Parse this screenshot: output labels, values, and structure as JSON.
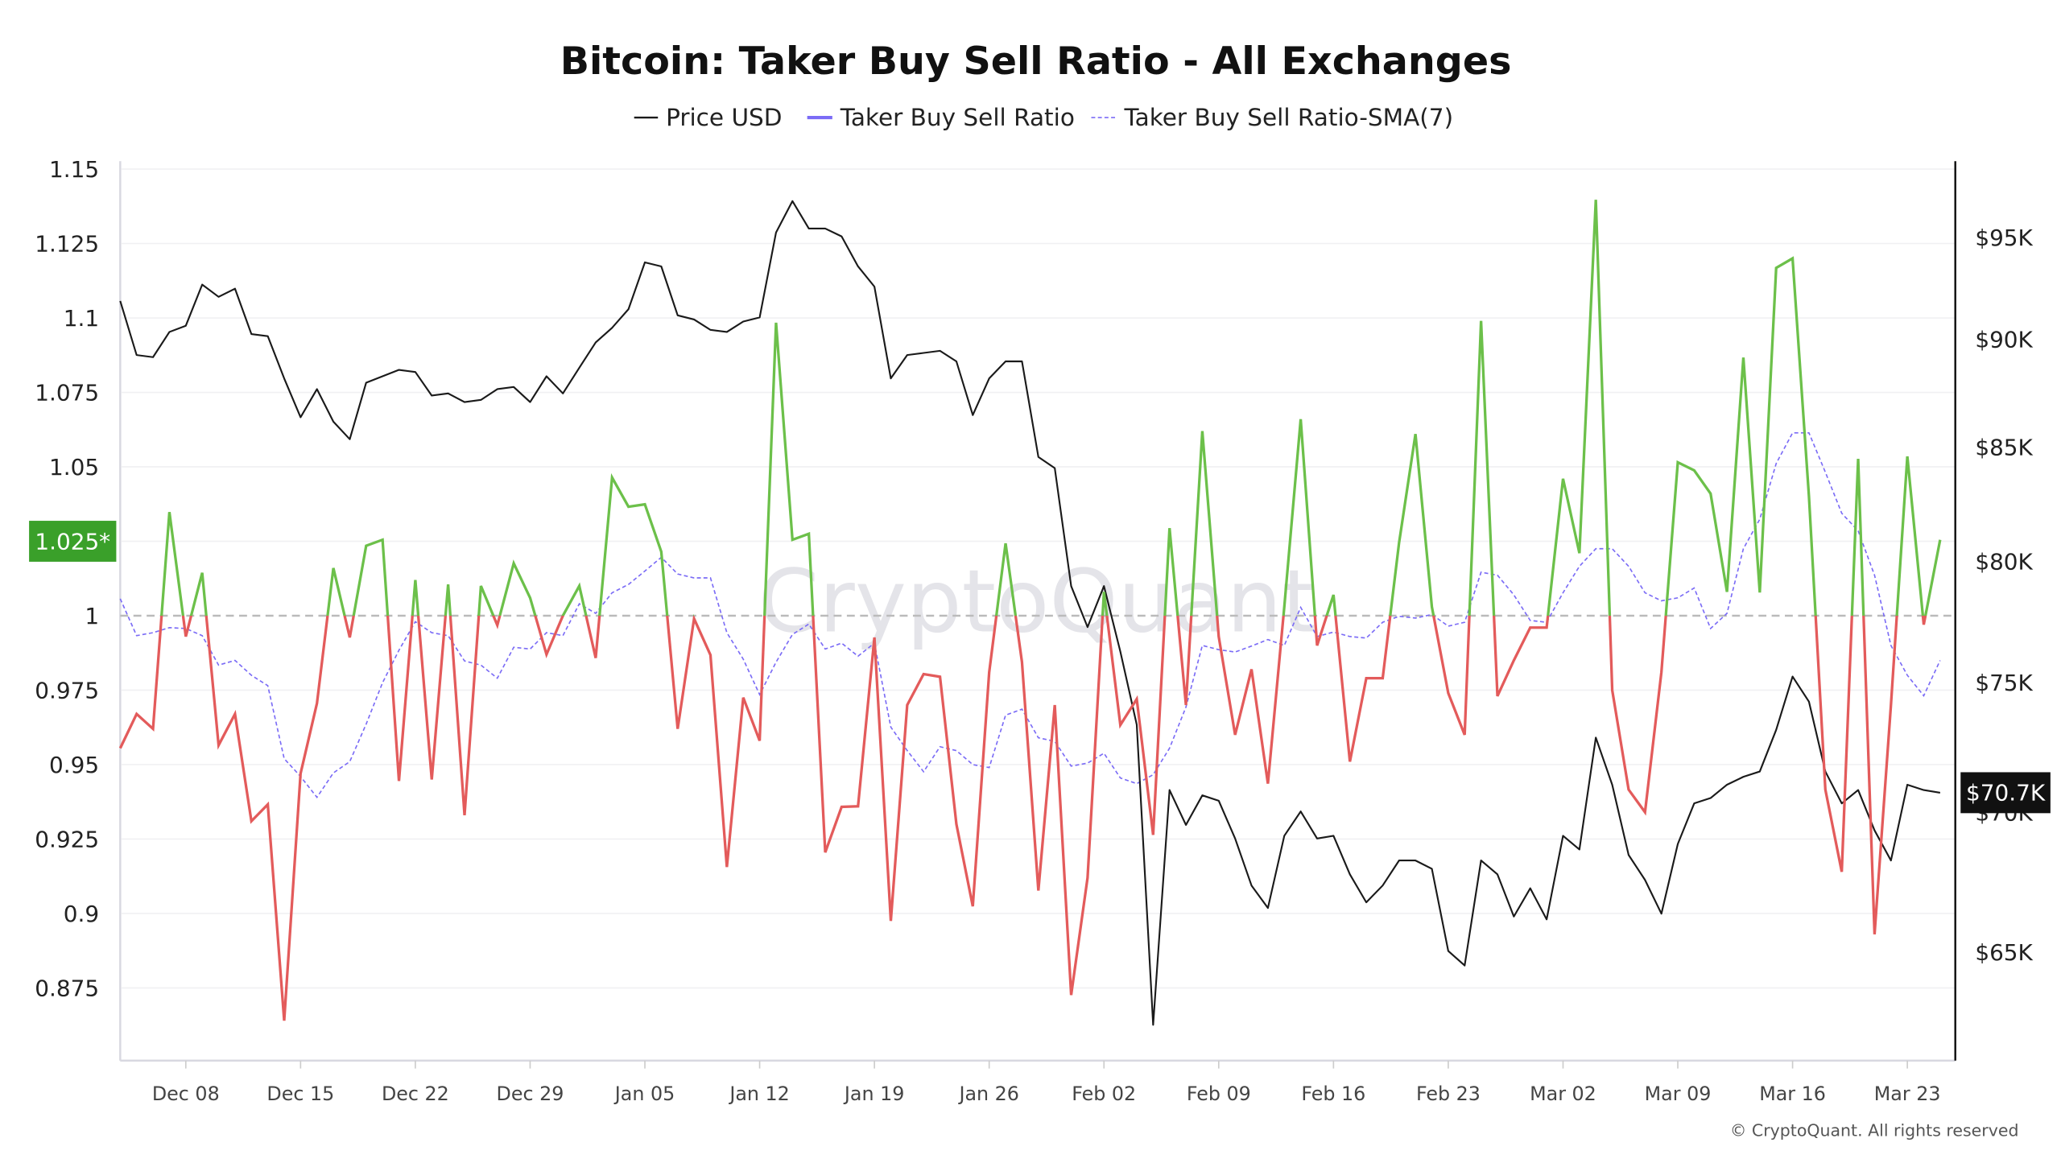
{
  "chart_data": {
    "type": "line",
    "title": "Bitcoin: Taker Buy Sell Ratio - All Exchanges",
    "legend": {
      "placement": "top-center",
      "items": [
        "Price USD",
        "Taker Buy Sell Ratio",
        "Taker Buy Sell Ratio-SMA(7)"
      ]
    },
    "x": [
      "Dec 04",
      "Dec 05",
      "Dec 06",
      "Dec 07",
      "Dec 08",
      "Dec 09",
      "Dec 10",
      "Dec 11",
      "Dec 12",
      "Dec 13",
      "Dec 14",
      "Dec 15",
      "Dec 16",
      "Dec 17",
      "Dec 18",
      "Dec 19",
      "Dec 20",
      "Dec 21",
      "Dec 22",
      "Dec 23",
      "Dec 24",
      "Dec 25",
      "Dec 26",
      "Dec 27",
      "Dec 28",
      "Dec 29",
      "Dec 30",
      "Dec 31",
      "Jan 01",
      "Jan 02",
      "Jan 03",
      "Jan 04",
      "Jan 05",
      "Jan 06",
      "Jan 07",
      "Jan 08",
      "Jan 09",
      "Jan 10",
      "Jan 11",
      "Jan 12",
      "Jan 13",
      "Jan 14",
      "Jan 15",
      "Jan 16",
      "Jan 17",
      "Jan 18",
      "Jan 19",
      "Jan 20",
      "Jan 21",
      "Jan 22",
      "Jan 23",
      "Jan 24",
      "Jan 25",
      "Jan 26",
      "Jan 27",
      "Jan 28",
      "Jan 29",
      "Jan 30",
      "Jan 31",
      "Feb 01",
      "Feb 02",
      "Feb 03",
      "Feb 04",
      "Feb 05",
      "Feb 06",
      "Feb 07",
      "Feb 08",
      "Feb 09",
      "Feb 10",
      "Feb 11",
      "Feb 12",
      "Feb 13",
      "Feb 14",
      "Feb 15",
      "Feb 16",
      "Feb 17",
      "Feb 18",
      "Feb 19",
      "Feb 20",
      "Feb 21",
      "Feb 22",
      "Feb 23",
      "Feb 24",
      "Feb 25",
      "Feb 26",
      "Feb 27",
      "Feb 28",
      "Mar 01",
      "Mar 02",
      "Mar 03",
      "Mar 04",
      "Mar 05",
      "Mar 06",
      "Mar 07",
      "Mar 08",
      "Mar 09",
      "Mar 10",
      "Mar 11",
      "Mar 12",
      "Mar 13",
      "Mar 14",
      "Mar 15",
      "Mar 16",
      "Mar 17",
      "Mar 18",
      "Mar 19",
      "Mar 20",
      "Mar 21",
      "Mar 22",
      "Mar 23",
      "Mar 24",
      "Mar 25"
    ],
    "x_ticks": [
      "Dec 08",
      "Dec 15",
      "Dec 22",
      "Dec 29",
      "Jan 05",
      "Jan 12",
      "Jan 19",
      "Jan 26",
      "Feb 02",
      "Feb 09",
      "Feb 16",
      "Feb 23",
      "Mar 02",
      "Mar 09",
      "Mar 16",
      "Mar 23"
    ],
    "y_left": {
      "range": [
        0.85,
        1.15
      ],
      "ticks": [
        1.15,
        1.125,
        1.1,
        1.075,
        1.05,
        1.025,
        1,
        0.975,
        0.95,
        0.925,
        0.9,
        0.875
      ],
      "tick_labels": [
        "1.15",
        "1.125",
        "1.1",
        "1.075",
        "1.05",
        "",
        "1",
        "0.975",
        "0.95",
        "0.925",
        "0.9",
        "0.875"
      ],
      "reference_line": 1,
      "marker_label": "1.025*",
      "marker_value": 1.025
    },
    "y_right": {
      "scale": "log",
      "ticks": [
        95000,
        90000,
        85000,
        80000,
        75000,
        70000,
        65000
      ],
      "tick_labels": [
        "$95K",
        "$90K",
        "$85K",
        "$80K",
        "$75K",
        "$70K",
        "$65K"
      ],
      "current_label": "$70.7K",
      "current_value": 70700
    },
    "grid": true,
    "series": [
      {
        "name": "Price USD",
        "axis": "right",
        "color": "#1a1a1a",
        "values": [
          91800,
          89200,
          89100,
          90300,
          90600,
          92600,
          92000,
          92400,
          90200,
          90100,
          88100,
          86300,
          87600,
          86100,
          85300,
          87900,
          88200,
          88500,
          88400,
          87300,
          87400,
          87000,
          87100,
          87600,
          87700,
          87000,
          88200,
          87400,
          88600,
          89800,
          90500,
          91400,
          93700,
          93500,
          91100,
          90900,
          90400,
          90300,
          90800,
          91000,
          95200,
          96800,
          95400,
          95400,
          95000,
          93500,
          92500,
          88100,
          89200,
          89300,
          89400,
          88900,
          86400,
          88100,
          88900,
          88900,
          84500,
          84000,
          78900,
          77200,
          78900,
          76200,
          73300,
          62500,
          70800,
          69500,
          70600,
          70400,
          69000,
          67300,
          66500,
          69100,
          70000,
          69000,
          69100,
          67700,
          66700,
          67300,
          68200,
          68200,
          67900,
          65000,
          64500,
          68200,
          67700,
          66200,
          67200,
          66100,
          69100,
          68600,
          72800,
          71000,
          68400,
          67500,
          66300,
          68800,
          70300,
          70500,
          71000,
          71300,
          71500,
          73100,
          75200,
          74200,
          71500,
          70300,
          70800,
          69300,
          68200,
          71000,
          70800,
          70700
        ]
      },
      {
        "name": "Taker Buy Sell Ratio",
        "axis": "left",
        "color": "#7b6cf6",
        "color_above_1": "#6cc04a",
        "color_below_1": "#e35b5b",
        "values": [
          0.9555,
          0.967,
          0.962,
          1.0348,
          0.993,
          1.0144,
          0.9565,
          0.967,
          0.931,
          0.9366,
          0.864,
          0.947,
          0.9706,
          1.016,
          0.9927,
          1.0235,
          1.0255,
          0.9445,
          1.012,
          0.945,
          1.0105,
          0.933,
          1.01,
          0.9968,
          1.0176,
          1.006,
          0.987,
          1.0,
          1.01,
          0.9858,
          1.0464,
          1.0366,
          1.0374,
          1.0215,
          0.962,
          0.999,
          0.9868,
          0.9156,
          0.9725,
          0.958,
          1.0984,
          1.0255,
          1.0275,
          0.9205,
          0.9358,
          0.936,
          0.9927,
          0.8975,
          0.97,
          0.9804,
          0.9795,
          0.93,
          0.9024,
          0.981,
          1.0243,
          0.9844,
          0.9077,
          0.97,
          0.8726,
          0.912,
          1.008,
          0.9633,
          0.972,
          0.9264,
          1.0294,
          0.97,
          1.062,
          0.993,
          0.96,
          0.982,
          0.9436,
          1.003,
          1.066,
          0.99,
          1.007,
          0.951,
          0.979,
          0.979,
          1.0245,
          1.061,
          1.003,
          0.974,
          0.96,
          1.099,
          0.973,
          0.985,
          0.996,
          0.996,
          1.046,
          1.021,
          1.1397,
          0.975,
          0.9416,
          0.934,
          0.981,
          1.0515,
          1.0488,
          1.041,
          1.008,
          1.0867,
          1.0078,
          1.1168,
          1.12,
          1.04,
          0.9416,
          0.914,
          1.0527,
          0.893,
          0.97,
          1.0535,
          0.997,
          1.0255
        ]
      },
      {
        "name": "Taker Buy Sell Ratio-SMA(7)",
        "axis": "left",
        "color": "#7b6cf6",
        "style": "dashed",
        "values": [
          1.0057,
          0.9933,
          0.9943,
          0.996,
          0.9957,
          0.9933,
          0.9834,
          0.985,
          0.98,
          0.9765,
          0.952,
          0.946,
          0.939,
          0.9472,
          0.951,
          0.9636,
          0.9775,
          0.9884,
          0.998,
          0.9943,
          0.9933,
          0.9848,
          0.9834,
          0.979,
          0.9894,
          0.9888,
          0.9943,
          0.9933,
          1.004,
          1.0008,
          1.0077,
          1.0105,
          1.015,
          1.0196,
          1.014,
          1.0127,
          1.0127,
          0.9943,
          0.9854,
          0.9735,
          0.9844,
          0.9937,
          0.9972,
          0.9888,
          0.9908,
          0.9864,
          0.9908,
          0.9626,
          0.9547,
          0.9476,
          0.956,
          0.9547,
          0.95,
          0.949,
          0.9666,
          0.9686,
          0.959,
          0.9578,
          0.9495,
          0.9505,
          0.9538,
          0.9455,
          0.9436,
          0.9466,
          0.9555,
          0.9693,
          0.99,
          0.9886,
          0.9878,
          0.9898,
          0.992,
          0.99,
          1.0028,
          0.993,
          0.9945,
          0.993,
          0.9925,
          0.9978,
          0.9998,
          0.9992,
          1.0004,
          0.9965,
          0.9978,
          1.0146,
          1.0136,
          1.007,
          0.9984,
          0.9978,
          1.0077,
          1.0166,
          1.0225,
          1.0225,
          1.0166,
          1.0077,
          1.005,
          1.006,
          1.0093,
          0.9957,
          1.0008,
          1.0225,
          1.0324,
          1.0511,
          1.0614,
          1.0614,
          1.0482,
          1.0344,
          1.0285,
          1.0136,
          0.99,
          0.98,
          0.9731,
          0.985
        ]
      }
    ],
    "watermark": "CryptoQuant",
    "copyright": "© CryptoQuant. All rights reserved"
  }
}
